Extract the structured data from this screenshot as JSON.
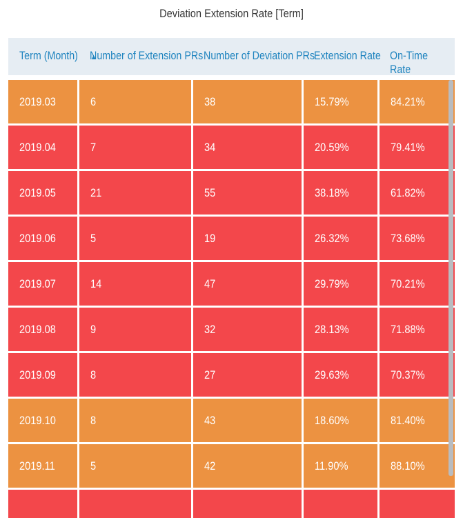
{
  "title": "Deviation Extension Rate [Term]",
  "colors": {
    "orange": "#ec9241",
    "red": "#f3474b",
    "header_text": "#1f84bf",
    "header_bg": "#e6edf3"
  },
  "header": {
    "col1": "Term (Month)",
    "col1_icon": "sort-asc-icon",
    "col2": "Number of Extension PRs",
    "col3": "Number of Deviation PRs",
    "col4": "Extension Rate",
    "col5": "On-Time Rate"
  },
  "chart_data": {
    "type": "table",
    "title": "Deviation Extension Rate [Term]",
    "columns": [
      "Term (Month)",
      "Number of Extension PRs",
      "Number of Deviation PRs",
      "Extension Rate",
      "On-Time Rate"
    ],
    "rows": [
      {
        "term": "2019.03",
        "ext": "6",
        "dev": "38",
        "ext_rate": "15.79%",
        "ontime": "84.21%",
        "color": "orange"
      },
      {
        "term": "2019.04",
        "ext": "7",
        "dev": "34",
        "ext_rate": "20.59%",
        "ontime": "79.41%",
        "color": "red"
      },
      {
        "term": "2019.05",
        "ext": "21",
        "dev": "55",
        "ext_rate": "38.18%",
        "ontime": "61.82%",
        "color": "red"
      },
      {
        "term": "2019.06",
        "ext": "5",
        "dev": "19",
        "ext_rate": "26.32%",
        "ontime": "73.68%",
        "color": "red"
      },
      {
        "term": "2019.07",
        "ext": "14",
        "dev": "47",
        "ext_rate": "29.79%",
        "ontime": "70.21%",
        "color": "red"
      },
      {
        "term": "2019.08",
        "ext": "9",
        "dev": "32",
        "ext_rate": "28.13%",
        "ontime": "71.88%",
        "color": "red"
      },
      {
        "term": "2019.09",
        "ext": "8",
        "dev": "27",
        "ext_rate": "29.63%",
        "ontime": "70.37%",
        "color": "red"
      },
      {
        "term": "2019.10",
        "ext": "8",
        "dev": "43",
        "ext_rate": "18.60%",
        "ontime": "81.40%",
        "color": "orange"
      },
      {
        "term": "2019.11",
        "ext": "5",
        "dev": "42",
        "ext_rate": "11.90%",
        "ontime": "88.10%",
        "color": "orange"
      },
      {
        "term": "",
        "ext": "",
        "dev": "",
        "ext_rate": "",
        "ontime": "",
        "color": "red"
      }
    ]
  }
}
